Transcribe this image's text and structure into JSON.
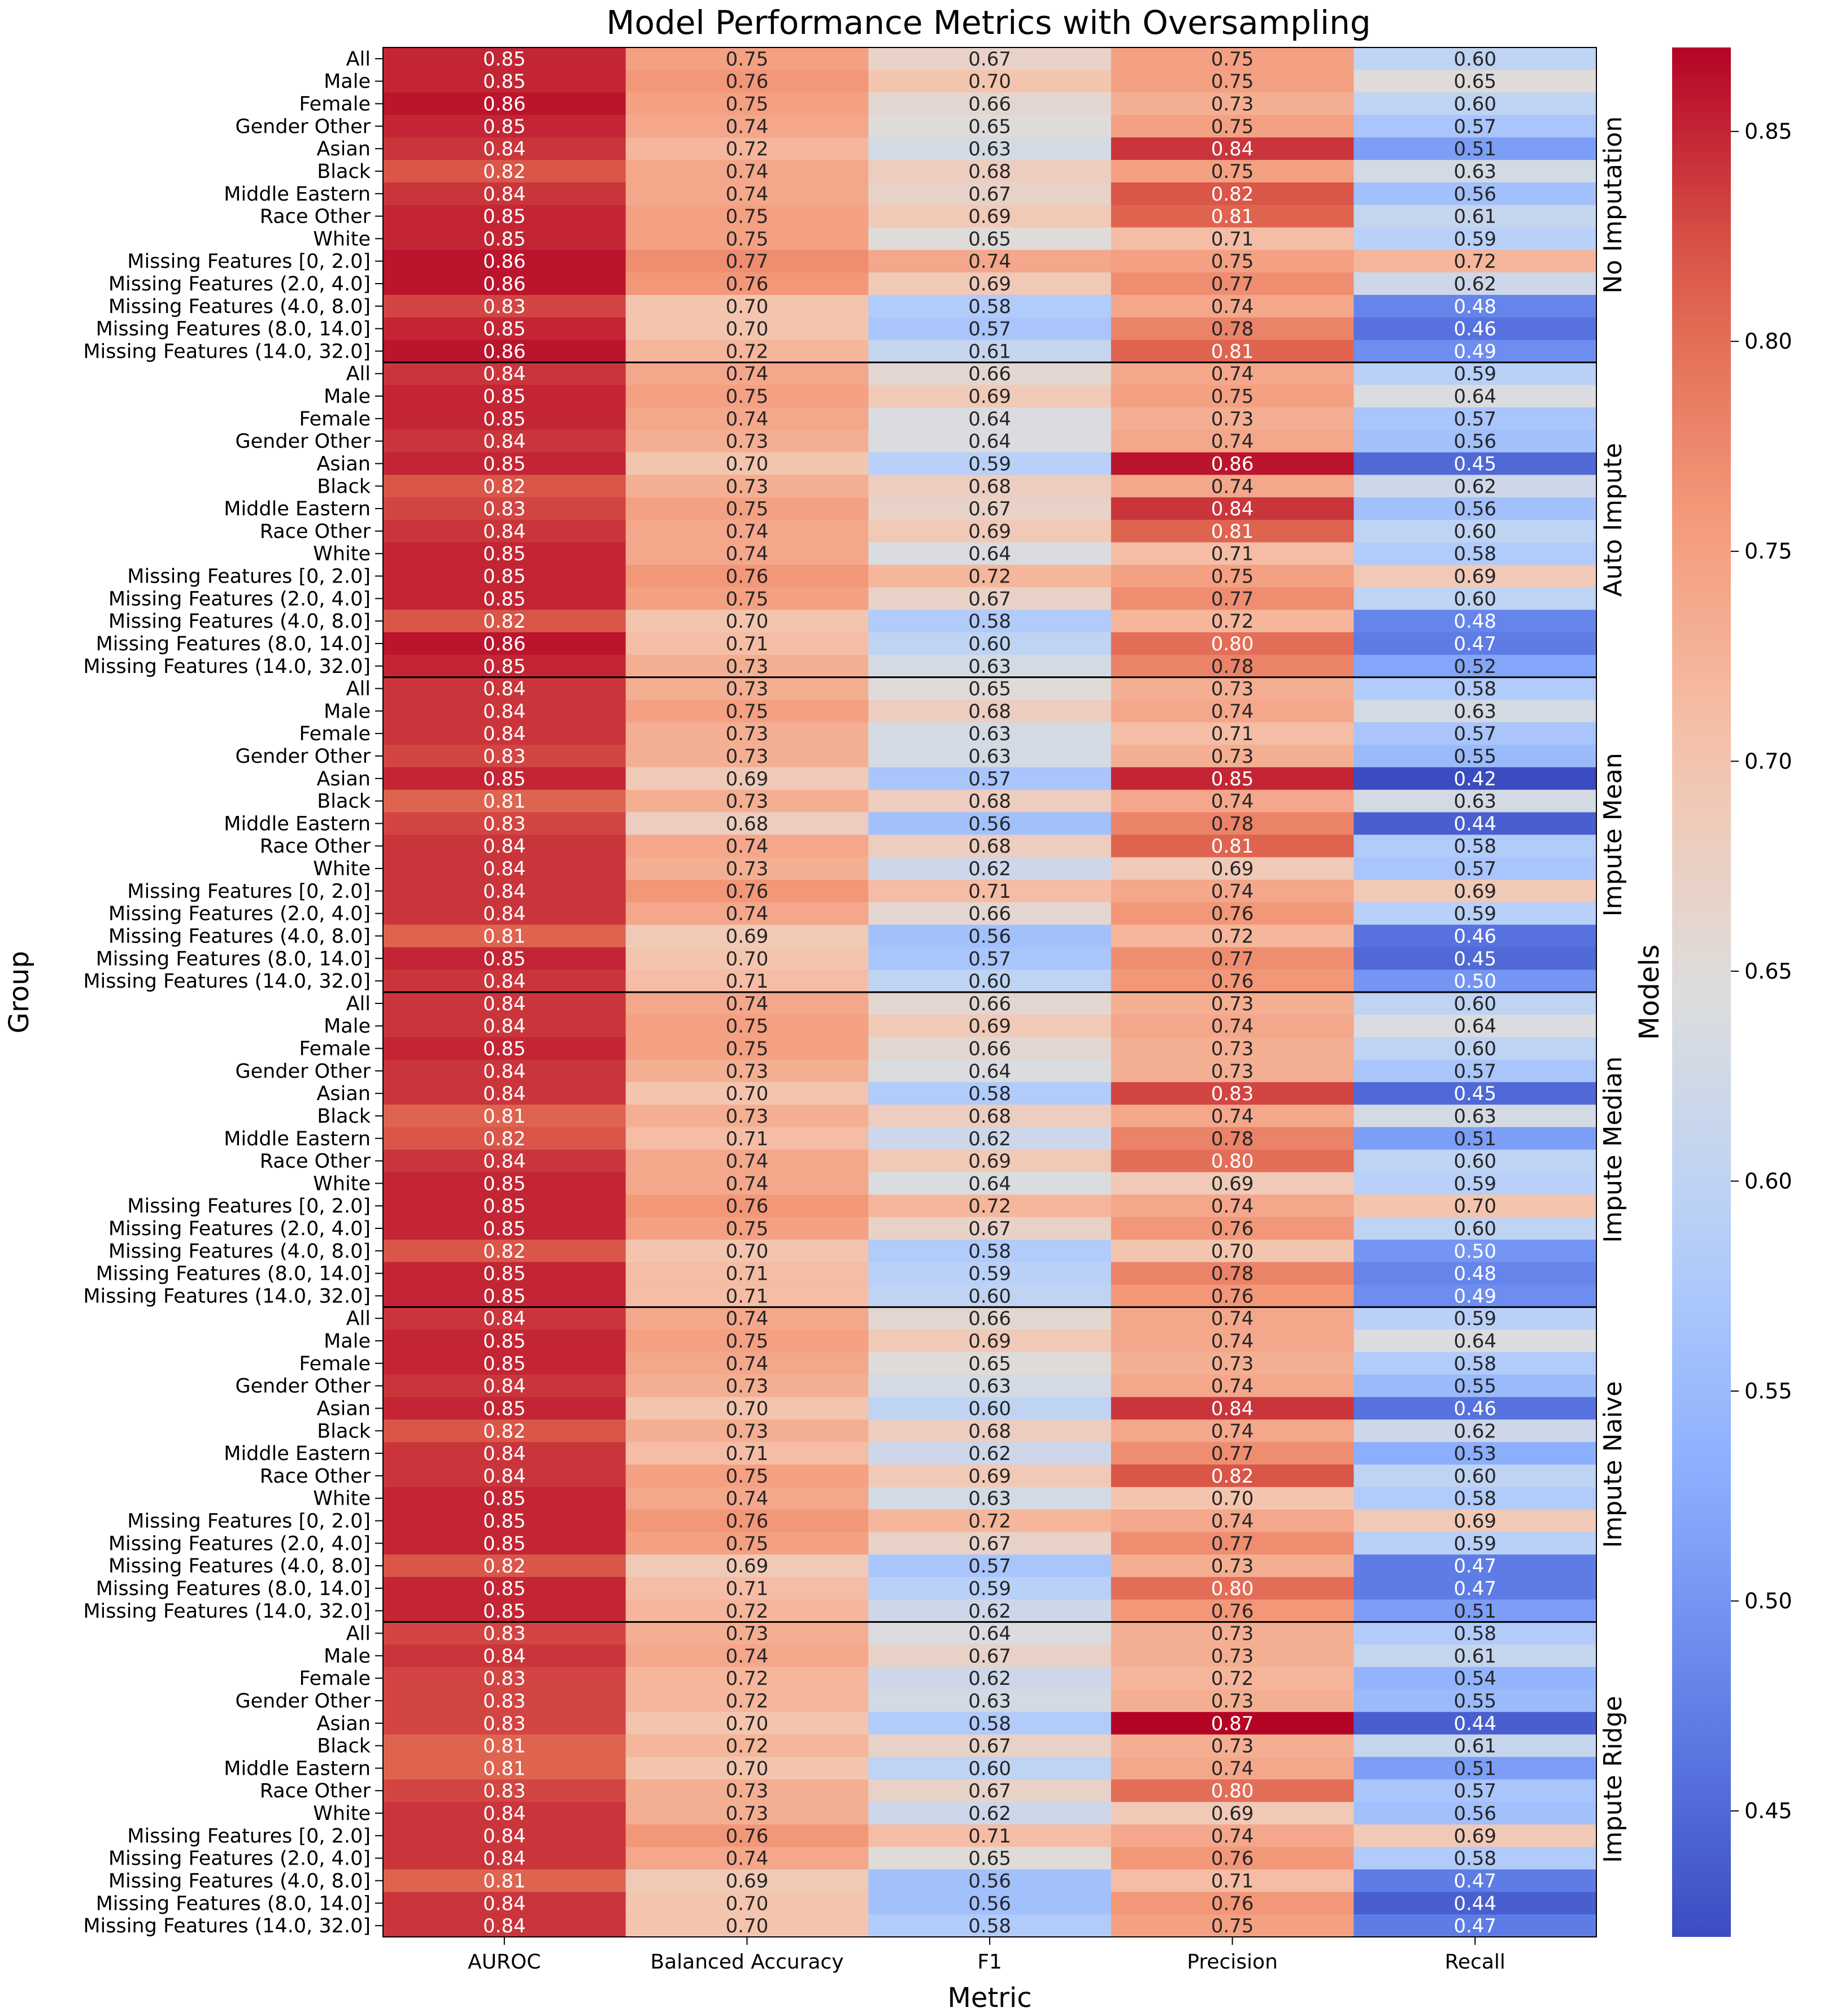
{
  "chart_data": {
    "type": "heatmap",
    "title": "Model Performance Metrics with Oversampling",
    "xlabel": "Metric",
    "ylabel": "Group",
    "right_label": "Models",
    "colormap": "coolwarm",
    "color_range": [
      0.42,
      0.87
    ],
    "colorbar_ticks": [
      "0.45",
      "0.50",
      "0.55",
      "0.60",
      "0.65",
      "0.70",
      "0.75",
      "0.80",
      "0.85"
    ],
    "metrics": [
      "AUROC",
      "Balanced Accuracy",
      "F1",
      "Precision",
      "Recall"
    ],
    "groups": [
      "All",
      "Male",
      "Female",
      "Gender Other",
      "Asian",
      "Black",
      "Middle Eastern",
      "Race Other",
      "White",
      "Missing Features [0, 2.0]",
      "Missing Features (2.0, 4.0]",
      "Missing Features (4.0, 8.0]",
      "Missing Features (8.0, 14.0]",
      "Missing Features (14.0, 32.0]"
    ],
    "models": [
      {
        "name": "No Imputation",
        "values": [
          [
            0.85,
            0.75,
            0.67,
            0.75,
            0.6
          ],
          [
            0.85,
            0.76,
            0.7,
            0.75,
            0.65
          ],
          [
            0.86,
            0.75,
            0.66,
            0.73,
            0.6
          ],
          [
            0.85,
            0.74,
            0.65,
            0.75,
            0.57
          ],
          [
            0.84,
            0.72,
            0.63,
            0.84,
            0.51
          ],
          [
            0.82,
            0.74,
            0.68,
            0.75,
            0.63
          ],
          [
            0.84,
            0.74,
            0.67,
            0.82,
            0.56
          ],
          [
            0.85,
            0.75,
            0.69,
            0.81,
            0.61
          ],
          [
            0.85,
            0.75,
            0.65,
            0.71,
            0.59
          ],
          [
            0.86,
            0.77,
            0.74,
            0.75,
            0.72
          ],
          [
            0.86,
            0.76,
            0.69,
            0.77,
            0.62
          ],
          [
            0.83,
            0.7,
            0.58,
            0.74,
            0.48
          ],
          [
            0.85,
            0.7,
            0.57,
            0.78,
            0.46
          ],
          [
            0.86,
            0.72,
            0.61,
            0.81,
            0.49
          ]
        ]
      },
      {
        "name": "Auto Impute",
        "values": [
          [
            0.84,
            0.74,
            0.66,
            0.74,
            0.59
          ],
          [
            0.85,
            0.75,
            0.69,
            0.75,
            0.64
          ],
          [
            0.85,
            0.74,
            0.64,
            0.73,
            0.57
          ],
          [
            0.84,
            0.73,
            0.64,
            0.74,
            0.56
          ],
          [
            0.85,
            0.7,
            0.59,
            0.86,
            0.45
          ],
          [
            0.82,
            0.73,
            0.68,
            0.74,
            0.62
          ],
          [
            0.83,
            0.75,
            0.67,
            0.84,
            0.56
          ],
          [
            0.84,
            0.74,
            0.69,
            0.81,
            0.6
          ],
          [
            0.85,
            0.74,
            0.64,
            0.71,
            0.58
          ],
          [
            0.85,
            0.76,
            0.72,
            0.75,
            0.69
          ],
          [
            0.85,
            0.75,
            0.67,
            0.77,
            0.6
          ],
          [
            0.82,
            0.7,
            0.58,
            0.72,
            0.48
          ],
          [
            0.86,
            0.71,
            0.6,
            0.8,
            0.47
          ],
          [
            0.85,
            0.73,
            0.63,
            0.78,
            0.52
          ]
        ]
      },
      {
        "name": "Impute Mean",
        "values": [
          [
            0.84,
            0.73,
            0.65,
            0.73,
            0.58
          ],
          [
            0.84,
            0.75,
            0.68,
            0.74,
            0.63
          ],
          [
            0.84,
            0.73,
            0.63,
            0.71,
            0.57
          ],
          [
            0.83,
            0.73,
            0.63,
            0.73,
            0.55
          ],
          [
            0.85,
            0.69,
            0.57,
            0.85,
            0.42
          ],
          [
            0.81,
            0.73,
            0.68,
            0.74,
            0.63
          ],
          [
            0.83,
            0.68,
            0.56,
            0.78,
            0.44
          ],
          [
            0.84,
            0.74,
            0.68,
            0.81,
            0.58
          ],
          [
            0.84,
            0.73,
            0.62,
            0.69,
            0.57
          ],
          [
            0.84,
            0.76,
            0.71,
            0.74,
            0.69
          ],
          [
            0.84,
            0.74,
            0.66,
            0.76,
            0.59
          ],
          [
            0.81,
            0.69,
            0.56,
            0.72,
            0.46
          ],
          [
            0.85,
            0.7,
            0.57,
            0.77,
            0.45
          ],
          [
            0.84,
            0.71,
            0.6,
            0.76,
            0.5
          ]
        ]
      },
      {
        "name": "Impute Median",
        "values": [
          [
            0.84,
            0.74,
            0.66,
            0.73,
            0.6
          ],
          [
            0.84,
            0.75,
            0.69,
            0.74,
            0.64
          ],
          [
            0.85,
            0.75,
            0.66,
            0.73,
            0.6
          ],
          [
            0.84,
            0.73,
            0.64,
            0.73,
            0.57
          ],
          [
            0.84,
            0.7,
            0.58,
            0.83,
            0.45
          ],
          [
            0.81,
            0.73,
            0.68,
            0.74,
            0.63
          ],
          [
            0.82,
            0.71,
            0.62,
            0.78,
            0.51
          ],
          [
            0.84,
            0.74,
            0.69,
            0.8,
            0.6
          ],
          [
            0.85,
            0.74,
            0.64,
            0.69,
            0.59
          ],
          [
            0.85,
            0.76,
            0.72,
            0.74,
            0.7
          ],
          [
            0.85,
            0.75,
            0.67,
            0.76,
            0.6
          ],
          [
            0.82,
            0.7,
            0.58,
            0.7,
            0.5
          ],
          [
            0.85,
            0.71,
            0.59,
            0.78,
            0.48
          ],
          [
            0.85,
            0.71,
            0.6,
            0.76,
            0.49
          ]
        ]
      },
      {
        "name": "Impute Naive",
        "values": [
          [
            0.84,
            0.74,
            0.66,
            0.74,
            0.59
          ],
          [
            0.85,
            0.75,
            0.69,
            0.74,
            0.64
          ],
          [
            0.85,
            0.74,
            0.65,
            0.73,
            0.58
          ],
          [
            0.84,
            0.73,
            0.63,
            0.74,
            0.55
          ],
          [
            0.85,
            0.7,
            0.6,
            0.84,
            0.46
          ],
          [
            0.82,
            0.73,
            0.68,
            0.74,
            0.62
          ],
          [
            0.84,
            0.71,
            0.62,
            0.77,
            0.53
          ],
          [
            0.84,
            0.75,
            0.69,
            0.82,
            0.6
          ],
          [
            0.85,
            0.74,
            0.63,
            0.7,
            0.58
          ],
          [
            0.85,
            0.76,
            0.72,
            0.74,
            0.69
          ],
          [
            0.85,
            0.75,
            0.67,
            0.77,
            0.59
          ],
          [
            0.82,
            0.69,
            0.57,
            0.73,
            0.47
          ],
          [
            0.85,
            0.71,
            0.59,
            0.8,
            0.47
          ],
          [
            0.85,
            0.72,
            0.62,
            0.76,
            0.51
          ]
        ]
      },
      {
        "name": "Impute Ridge",
        "values": [
          [
            0.83,
            0.73,
            0.64,
            0.73,
            0.58
          ],
          [
            0.84,
            0.74,
            0.67,
            0.73,
            0.61
          ],
          [
            0.83,
            0.72,
            0.62,
            0.72,
            0.54
          ],
          [
            0.83,
            0.72,
            0.63,
            0.73,
            0.55
          ],
          [
            0.83,
            0.7,
            0.58,
            0.87,
            0.44
          ],
          [
            0.81,
            0.72,
            0.67,
            0.73,
            0.61
          ],
          [
            0.81,
            0.7,
            0.6,
            0.74,
            0.51
          ],
          [
            0.83,
            0.73,
            0.67,
            0.8,
            0.57
          ],
          [
            0.84,
            0.73,
            0.62,
            0.69,
            0.56
          ],
          [
            0.84,
            0.76,
            0.71,
            0.74,
            0.69
          ],
          [
            0.84,
            0.74,
            0.65,
            0.76,
            0.58
          ],
          [
            0.81,
            0.69,
            0.56,
            0.71,
            0.47
          ],
          [
            0.84,
            0.7,
            0.56,
            0.76,
            0.44
          ],
          [
            0.84,
            0.7,
            0.58,
            0.75,
            0.47
          ]
        ]
      }
    ]
  }
}
